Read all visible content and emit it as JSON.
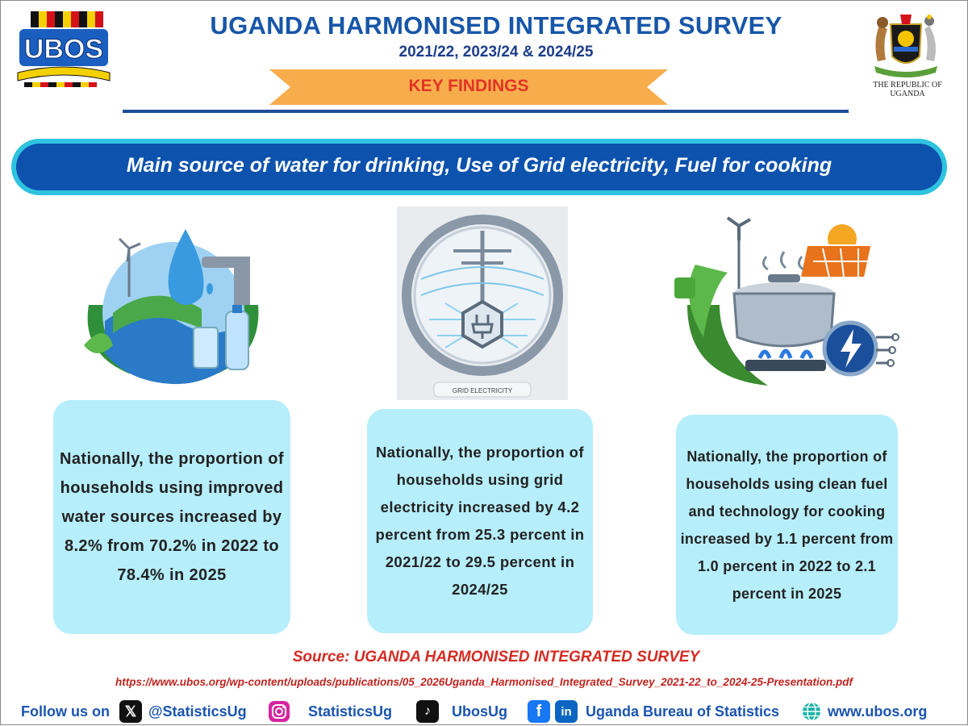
{
  "header": {
    "title": "UGANDA HARMONISED INTEGRATED SURVEY",
    "subtitle": "2021/22, 2023/24 & 2024/25",
    "ribbon": "KEY FINDINGS",
    "logo_text": "UBOS",
    "coat_of_arms_caption": "THE REPUBLIC OF UGANDA"
  },
  "banner": "Main source of water for drinking, Use of Grid electricity, Fuel for cooking",
  "panels": [
    {
      "icon": "water-icon",
      "text": "Nationally, the proportion of households using improved water sources increased by 8.2% from 70.2% in 2022 to 78.4% in 2025"
    },
    {
      "icon": "grid-electricity-icon",
      "icon_caption": "GRID ELECTRICITY",
      "text": "Nationally, the proportion of households using grid electricity increased by 4.2 percent from 25.3 percent in 2021/22 to 29.5 percent in 2024/25"
    },
    {
      "icon": "clean-cooking-icon",
      "text": "Nationally, the proportion of households using clean fuel and technology for cooking increased by 1.1 percent from 1.0 percent in 2022 to 2.1 percent in 2025"
    }
  ],
  "footer": {
    "source": "Source: UGANDA HARMONISED INTEGRATED SURVEY",
    "url": "https://www.ubos.org/wp-content/uploads/publications/05_2026Uganda_Harmonised_Integrated_Survey_2021-22_to_2024-25-Presentation.pdf",
    "follow_label": "Follow us on",
    "x_handle": "@StatisticsUg",
    "instagram_handle": "StatisticsUg",
    "tiktok_handle": "UbosUg",
    "facebook_linkedin_name": "Uganda Bureau of Statistics",
    "website": "www.ubos.org"
  },
  "colors": {
    "title_blue": "#1756a9",
    "banner_blue": "#0d52ad",
    "banner_cyan": "#2ec3df",
    "ribbon_orange": "#f7ad4c",
    "card_bg": "#b6eefb",
    "accent_red": "#d42b22"
  }
}
